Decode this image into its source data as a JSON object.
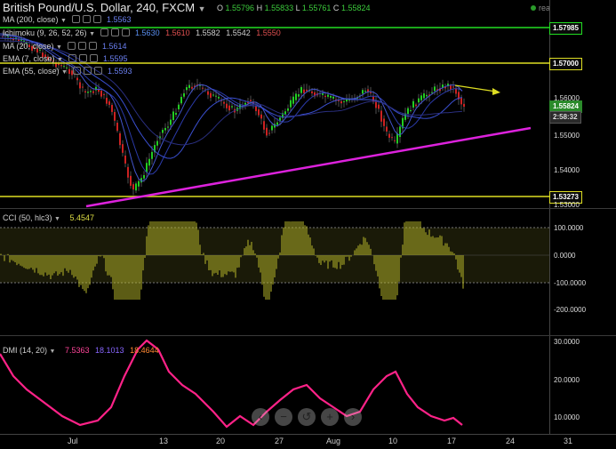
{
  "header": {
    "title": "British Pound/U.S. Dollar, 240, FXCM",
    "ohlc": {
      "o_label": "O",
      "o": "1.55796",
      "h_label": "H",
      "h": "1.55833",
      "l_label": "L",
      "l": "1.55761",
      "c_label": "C",
      "c": "1.55824"
    },
    "realtime_label": "realtime"
  },
  "indicators": [
    {
      "label": "MA (200, close)",
      "values": [
        "1.5563"
      ],
      "colors": [
        "#3a4fd0"
      ]
    },
    {
      "label": "Ichimoku (9, 26, 52, 26)",
      "values": [
        "1.5630",
        "1.5610",
        "1.5582",
        "1.5542",
        "1.5550"
      ],
      "colors": [
        "#3a6fe0",
        "#d03030",
        "#cfcfcf",
        "#cfcfcf",
        "#d03030"
      ]
    },
    {
      "label": "MA (20, close)",
      "values": [
        "1.5614"
      ],
      "colors": [
        "#3a4fd0"
      ]
    },
    {
      "label": "EMA (7, close)",
      "values": [
        "1.5595"
      ],
      "colors": [
        "#3a4fd0"
      ]
    },
    {
      "label": "EMA (55, close)",
      "values": [
        "1.5593"
      ],
      "colors": [
        "#3a4fd0"
      ]
    }
  ],
  "price_axis": {
    "labels": [
      "1.56000",
      "1.55000",
      "1.54000",
      "1.53000"
    ],
    "boxes": [
      {
        "text": "1.57985",
        "bg": "#0a0a0a",
        "fg": "#ffffff",
        "border": "#22dd22"
      },
      {
        "text": "1.57000",
        "bg": "#0a0a0a",
        "fg": "#ffffff",
        "border": "#dddd22"
      },
      {
        "text": "1.55824",
        "bg": "#2a8a2a",
        "fg": "#ffffff",
        "border": "#2a8a2a"
      },
      {
        "text": "2:58:32",
        "bg": "#2a2a2a",
        "fg": "#dddddd",
        "border": "#555555"
      },
      {
        "text": "1.53273",
        "bg": "#0a0a0a",
        "fg": "#ffffff",
        "border": "#dddd22"
      }
    ]
  },
  "cci": {
    "label": "CCI (50, hlc3)",
    "value": "5.4547",
    "axis": [
      "100.0000",
      "0.0000",
      "-100.0000",
      "-200.0000"
    ]
  },
  "dmi": {
    "label": "DMI (14, 20)",
    "values": [
      "7.5363",
      "18.1013",
      "18.4644"
    ],
    "colors": [
      "#ff3399",
      "#8855ff",
      "#ff8833"
    ],
    "axis": [
      "30.0000",
      "20.0000",
      "10.0000"
    ]
  },
  "x_axis": [
    "Jul",
    "13",
    "20",
    "27",
    "Aug",
    "10",
    "17",
    "24",
    "31"
  ],
  "nav_buttons": [
    "left-arrow-icon",
    "zoom-out-icon",
    "reset-icon",
    "zoom-in-icon",
    "right-arrow-icon"
  ],
  "colors": {
    "support_line": "#dd22dd",
    "resistance_green": "#22dd22",
    "resistance_yellow": "#dddd22",
    "arrow": "#dddd22",
    "candle_up": "#22cc22",
    "candle_down": "#cc2222",
    "cci_bars": "#b8b82a",
    "dmi_line": "#ff2288"
  }
}
